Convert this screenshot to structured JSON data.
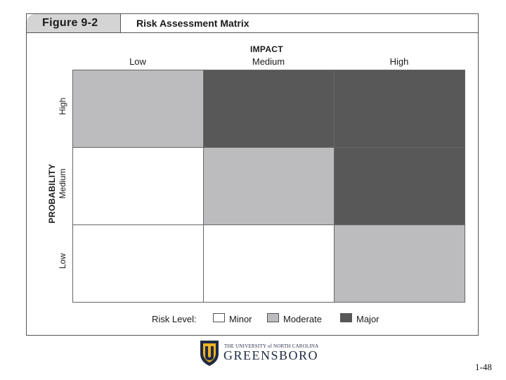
{
  "figure": {
    "label": "Figure 9-2",
    "title": "Risk Assessment Matrix"
  },
  "axes": {
    "x_title": "IMPACT",
    "x_labels": [
      "Low",
      "Medium",
      "High"
    ],
    "y_title": "PROBABILITY",
    "y_labels": [
      "High",
      "Medium",
      "Low"
    ]
  },
  "risk_levels": {
    "minor": "#ffffff",
    "moderate": "#bcbcbf",
    "major": "#585858"
  },
  "matrix": [
    [
      "moderate",
      "major",
      "major"
    ],
    [
      "minor",
      "moderate",
      "major"
    ],
    [
      "minor",
      "minor",
      "moderate"
    ]
  ],
  "legend": {
    "title": "Risk Level:",
    "items": [
      {
        "label": "Minor",
        "level": "minor"
      },
      {
        "label": "Moderate",
        "level": "moderate"
      },
      {
        "label": "Major",
        "level": "major"
      }
    ]
  },
  "logo": {
    "line1": "THE UNIVERSITY of NORTH CAROLINA",
    "line2": "GREENSBORO"
  },
  "page_number": "1-48"
}
